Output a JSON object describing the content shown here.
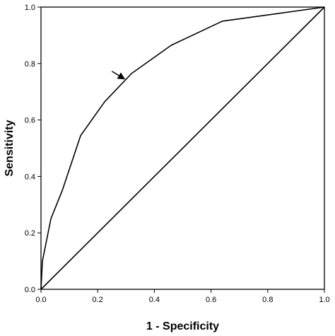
{
  "chart_data": {
    "type": "line",
    "xlabel": "1 - Specificity",
    "ylabel": "Sensitivity",
    "xlim": [
      0.0,
      1.0
    ],
    "ylim": [
      0.0,
      1.0
    ],
    "grid": false,
    "x_ticks": [
      "0.0",
      "0.2",
      "0.4",
      "0.6",
      "0.8",
      "1.0"
    ],
    "y_ticks": [
      "0.0",
      "0.2",
      "0.4",
      "0.6",
      "0.8",
      "1.0"
    ],
    "series": [
      {
        "x": [
          0.0,
          0.005,
          0.035,
          0.075,
          0.14,
          0.225,
          0.32,
          0.46,
          0.64,
          1.0
        ],
        "y": [
          0.0,
          0.1,
          0.25,
          0.35,
          0.545,
          0.665,
          0.765,
          0.865,
          0.95,
          1.0
        ]
      },
      {
        "x": [
          0.0,
          1.0
        ],
        "y": [
          0.0,
          1.0
        ]
      }
    ],
    "annotations": [
      {
        "type": "arrow",
        "points_to": {
          "x": 0.295,
          "y": 0.745
        }
      }
    ],
    "colors": {
      "line": "#000000",
      "axis": "#000000",
      "background": "#ffffff"
    }
  }
}
